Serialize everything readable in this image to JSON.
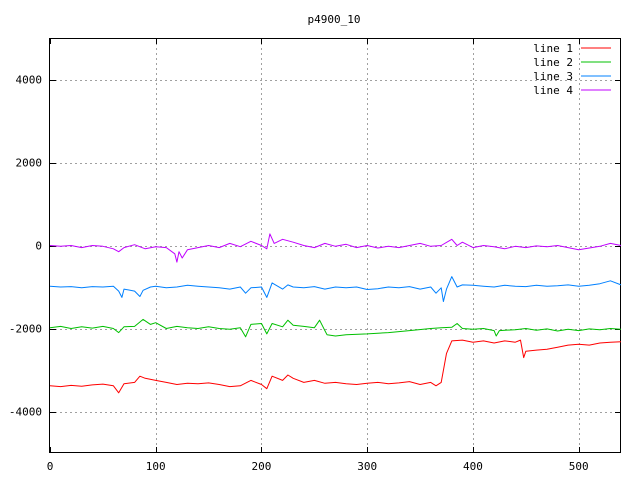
{
  "chart_data": {
    "type": "line",
    "title": "p4900_10",
    "xlabel": "",
    "ylabel": "",
    "xlim": [
      0,
      540
    ],
    "ylim": [
      -5000,
      5000
    ],
    "x_ticks": [
      0,
      100,
      200,
      300,
      400,
      500
    ],
    "y_ticks": [
      -4000,
      -2000,
      0,
      2000,
      4000
    ],
    "x_tick_labels": [
      "0",
      "100",
      "200",
      "300",
      "400",
      "500"
    ],
    "y_tick_labels": [
      "-4000",
      "-2000",
      "0",
      "2000",
      "4000"
    ],
    "grid": true,
    "legend_position": "top-right",
    "series": [
      {
        "name": "line 1",
        "color": "#ff0000",
        "points": [
          [
            0,
            -3380
          ],
          [
            10,
            -3400
          ],
          [
            20,
            -3370
          ],
          [
            30,
            -3390
          ],
          [
            40,
            -3360
          ],
          [
            50,
            -3340
          ],
          [
            60,
            -3380
          ],
          [
            65,
            -3550
          ],
          [
            70,
            -3330
          ],
          [
            80,
            -3300
          ],
          [
            85,
            -3150
          ],
          [
            90,
            -3200
          ],
          [
            100,
            -3250
          ],
          [
            110,
            -3300
          ],
          [
            120,
            -3350
          ],
          [
            130,
            -3320
          ],
          [
            140,
            -3330
          ],
          [
            150,
            -3310
          ],
          [
            160,
            -3350
          ],
          [
            170,
            -3400
          ],
          [
            180,
            -3380
          ],
          [
            190,
            -3250
          ],
          [
            200,
            -3350
          ],
          [
            205,
            -3450
          ],
          [
            210,
            -3150
          ],
          [
            220,
            -3250
          ],
          [
            225,
            -3120
          ],
          [
            230,
            -3200
          ],
          [
            240,
            -3300
          ],
          [
            250,
            -3250
          ],
          [
            260,
            -3320
          ],
          [
            270,
            -3300
          ],
          [
            280,
            -3330
          ],
          [
            290,
            -3350
          ],
          [
            300,
            -3320
          ],
          [
            310,
            -3300
          ],
          [
            320,
            -3330
          ],
          [
            330,
            -3310
          ],
          [
            340,
            -3280
          ],
          [
            350,
            -3350
          ],
          [
            360,
            -3300
          ],
          [
            365,
            -3380
          ],
          [
            370,
            -3300
          ],
          [
            375,
            -2600
          ],
          [
            380,
            -2300
          ],
          [
            390,
            -2280
          ],
          [
            400,
            -2330
          ],
          [
            410,
            -2300
          ],
          [
            420,
            -2350
          ],
          [
            430,
            -2300
          ],
          [
            440,
            -2330
          ],
          [
            445,
            -2280
          ],
          [
            448,
            -2700
          ],
          [
            450,
            -2550
          ],
          [
            460,
            -2520
          ],
          [
            470,
            -2500
          ],
          [
            480,
            -2450
          ],
          [
            490,
            -2400
          ],
          [
            500,
            -2380
          ],
          [
            510,
            -2400
          ],
          [
            520,
            -2350
          ],
          [
            530,
            -2330
          ],
          [
            540,
            -2320
          ]
        ]
      },
      {
        "name": "line 2",
        "color": "#00c000",
        "points": [
          [
            0,
            -1980
          ],
          [
            10,
            -1950
          ],
          [
            20,
            -2000
          ],
          [
            30,
            -1960
          ],
          [
            40,
            -1990
          ],
          [
            50,
            -1950
          ],
          [
            60,
            -2000
          ],
          [
            65,
            -2100
          ],
          [
            70,
            -1960
          ],
          [
            80,
            -1950
          ],
          [
            88,
            -1780
          ],
          [
            95,
            -1900
          ],
          [
            100,
            -1860
          ],
          [
            110,
            -2000
          ],
          [
            120,
            -1950
          ],
          [
            130,
            -1980
          ],
          [
            140,
            -2000
          ],
          [
            150,
            -1960
          ],
          [
            160,
            -2000
          ],
          [
            170,
            -2020
          ],
          [
            180,
            -1980
          ],
          [
            185,
            -2200
          ],
          [
            190,
            -1900
          ],
          [
            200,
            -1880
          ],
          [
            205,
            -2130
          ],
          [
            210,
            -1880
          ],
          [
            220,
            -1960
          ],
          [
            225,
            -1800
          ],
          [
            230,
            -1920
          ],
          [
            240,
            -1950
          ],
          [
            250,
            -1980
          ],
          [
            255,
            -1800
          ],
          [
            260,
            -2050
          ],
          [
            262,
            -2150
          ],
          [
            270,
            -2180
          ],
          [
            280,
            -2150
          ],
          [
            300,
            -2130
          ],
          [
            320,
            -2100
          ],
          [
            340,
            -2050
          ],
          [
            360,
            -2000
          ],
          [
            370,
            -1980
          ],
          [
            380,
            -1970
          ],
          [
            385,
            -1880
          ],
          [
            390,
            -2000
          ],
          [
            400,
            -2020
          ],
          [
            410,
            -2000
          ],
          [
            420,
            -2050
          ],
          [
            422,
            -2180
          ],
          [
            425,
            -2050
          ],
          [
            440,
            -2030
          ],
          [
            450,
            -2000
          ],
          [
            460,
            -2040
          ],
          [
            470,
            -2010
          ],
          [
            480,
            -2060
          ],
          [
            490,
            -2020
          ],
          [
            500,
            -2050
          ],
          [
            510,
            -2010
          ],
          [
            520,
            -2030
          ],
          [
            530,
            -2000
          ],
          [
            540,
            -2020
          ]
        ]
      },
      {
        "name": "line 3",
        "color": "#0080ff",
        "points": [
          [
            0,
            -980
          ],
          [
            10,
            -1000
          ],
          [
            20,
            -990
          ],
          [
            30,
            -1020
          ],
          [
            40,
            -990
          ],
          [
            50,
            -1000
          ],
          [
            60,
            -980
          ],
          [
            65,
            -1100
          ],
          [
            68,
            -1250
          ],
          [
            70,
            -1050
          ],
          [
            80,
            -1100
          ],
          [
            85,
            -1230
          ],
          [
            88,
            -1080
          ],
          [
            95,
            -1000
          ],
          [
            100,
            -980
          ],
          [
            110,
            -1020
          ],
          [
            120,
            -1000
          ],
          [
            130,
            -960
          ],
          [
            140,
            -980
          ],
          [
            150,
            -1000
          ],
          [
            160,
            -1020
          ],
          [
            170,
            -1050
          ],
          [
            180,
            -1000
          ],
          [
            185,
            -1150
          ],
          [
            190,
            -1020
          ],
          [
            200,
            -1000
          ],
          [
            205,
            -1250
          ],
          [
            210,
            -900
          ],
          [
            220,
            -1050
          ],
          [
            225,
            -950
          ],
          [
            230,
            -1000
          ],
          [
            240,
            -1020
          ],
          [
            250,
            -990
          ],
          [
            260,
            -1050
          ],
          [
            270,
            -1000
          ],
          [
            280,
            -1020
          ],
          [
            290,
            -1000
          ],
          [
            300,
            -1060
          ],
          [
            310,
            -1040
          ],
          [
            320,
            -1000
          ],
          [
            330,
            -1020
          ],
          [
            340,
            -990
          ],
          [
            350,
            -1050
          ],
          [
            360,
            -1000
          ],
          [
            365,
            -1150
          ],
          [
            370,
            -1020
          ],
          [
            372,
            -1350
          ],
          [
            375,
            -1050
          ],
          [
            380,
            -750
          ],
          [
            385,
            -1000
          ],
          [
            390,
            -950
          ],
          [
            400,
            -960
          ],
          [
            410,
            -980
          ],
          [
            420,
            -1000
          ],
          [
            430,
            -960
          ],
          [
            440,
            -980
          ],
          [
            450,
            -990
          ],
          [
            460,
            -960
          ],
          [
            470,
            -980
          ],
          [
            480,
            -970
          ],
          [
            490,
            -950
          ],
          [
            500,
            -980
          ],
          [
            510,
            -960
          ],
          [
            520,
            -920
          ],
          [
            530,
            -850
          ],
          [
            540,
            -950
          ]
        ]
      },
      {
        "name": "line 4",
        "color": "#c000ff",
        "points": [
          [
            0,
            0
          ],
          [
            10,
            -20
          ],
          [
            20,
            0
          ],
          [
            30,
            -50
          ],
          [
            40,
            0
          ],
          [
            50,
            -20
          ],
          [
            60,
            -80
          ],
          [
            65,
            -150
          ],
          [
            70,
            -50
          ],
          [
            80,
            20
          ],
          [
            90,
            -80
          ],
          [
            100,
            -30
          ],
          [
            110,
            -50
          ],
          [
            118,
            -200
          ],
          [
            120,
            -400
          ],
          [
            122,
            -150
          ],
          [
            125,
            -300
          ],
          [
            130,
            -100
          ],
          [
            140,
            -50
          ],
          [
            150,
            0
          ],
          [
            160,
            -50
          ],
          [
            170,
            50
          ],
          [
            180,
            -30
          ],
          [
            190,
            100
          ],
          [
            200,
            0
          ],
          [
            205,
            -80
          ],
          [
            208,
            280
          ],
          [
            212,
            50
          ],
          [
            220,
            150
          ],
          [
            230,
            80
          ],
          [
            240,
            0
          ],
          [
            250,
            -50
          ],
          [
            260,
            50
          ],
          [
            270,
            -20
          ],
          [
            280,
            30
          ],
          [
            290,
            -50
          ],
          [
            300,
            0
          ],
          [
            310,
            -60
          ],
          [
            320,
            -20
          ],
          [
            330,
            -50
          ],
          [
            340,
            0
          ],
          [
            350,
            50
          ],
          [
            360,
            -20
          ],
          [
            370,
            0
          ],
          [
            380,
            150
          ],
          [
            385,
            0
          ],
          [
            390,
            80
          ],
          [
            400,
            -50
          ],
          [
            410,
            0
          ],
          [
            420,
            -30
          ],
          [
            430,
            -80
          ],
          [
            440,
            -20
          ],
          [
            450,
            -50
          ],
          [
            460,
            -10
          ],
          [
            470,
            -30
          ],
          [
            480,
            0
          ],
          [
            490,
            -50
          ],
          [
            500,
            -100
          ],
          [
            510,
            -60
          ],
          [
            520,
            -20
          ],
          [
            530,
            50
          ],
          [
            540,
            0
          ]
        ]
      }
    ]
  }
}
